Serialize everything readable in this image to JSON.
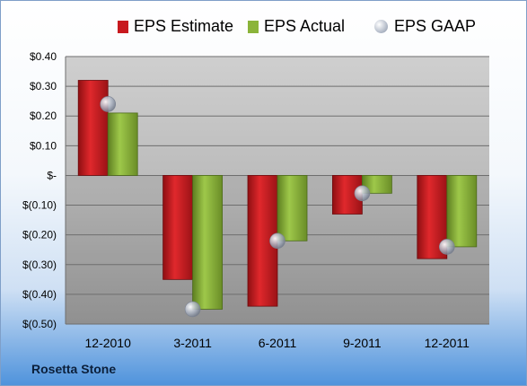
{
  "company": "Rosetta Stone",
  "chart_data": {
    "type": "bar",
    "categories": [
      "12-2010",
      "3-2011",
      "6-2011",
      "9-2011",
      "12-2011"
    ],
    "series": [
      {
        "name": "EPS Estimate",
        "kind": "bar",
        "color": "#c8191e",
        "values": [
          0.32,
          -0.35,
          -0.44,
          -0.13,
          -0.28
        ]
      },
      {
        "name": "EPS Actual",
        "kind": "bar",
        "color": "#8bb43a",
        "values": [
          0.21,
          -0.45,
          -0.22,
          -0.06,
          -0.24
        ]
      },
      {
        "name": "EPS GAAP",
        "kind": "marker",
        "color": "#b4bccb",
        "values": [
          0.24,
          -0.45,
          -0.22,
          -0.06,
          -0.24
        ]
      }
    ],
    "yticks": [
      {
        "value": 0.4,
        "label": "$0.40"
      },
      {
        "value": 0.3,
        "label": "$0.30"
      },
      {
        "value": 0.2,
        "label": "$0.20"
      },
      {
        "value": 0.1,
        "label": "$0.10"
      },
      {
        "value": 0.0,
        "label": "$-"
      },
      {
        "value": -0.1,
        "label": "$(0.10)"
      },
      {
        "value": -0.2,
        "label": "$(0.20)"
      },
      {
        "value": -0.3,
        "label": "$(0.30)"
      },
      {
        "value": -0.4,
        "label": "$(0.40)"
      },
      {
        "value": -0.5,
        "label": "$(0.50)"
      }
    ],
    "ylim": [
      -0.5,
      0.4
    ],
    "grid": true,
    "legend_position": "top"
  }
}
